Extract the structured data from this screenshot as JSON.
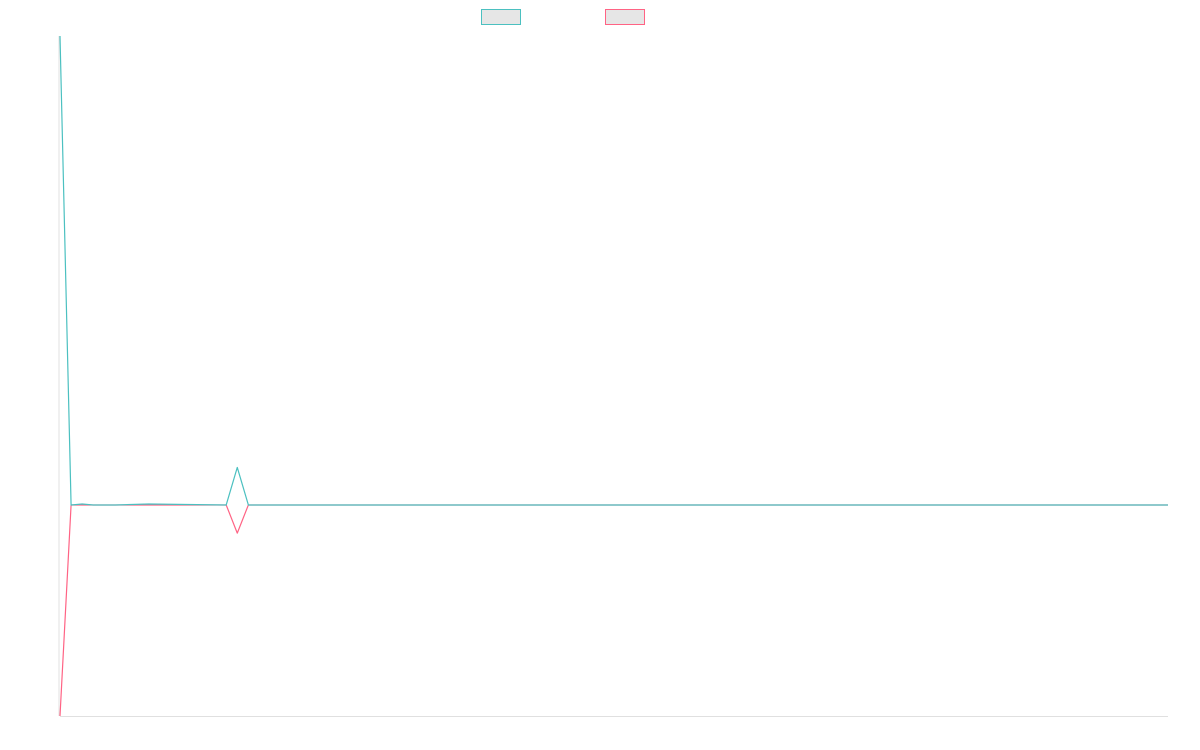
{
  "chart_data": {
    "type": "line",
    "title": "",
    "xlabel": "",
    "ylabel": "",
    "legend_position": "top-center",
    "grid": false,
    "ylim": [
      -0.45,
      1.0
    ],
    "xlim": [
      0,
      100
    ],
    "x": [
      0,
      1,
      2,
      3,
      5,
      8,
      15,
      16,
      17,
      100
    ],
    "series": [
      {
        "color": "#4bc0c0",
        "fill": "#e6e6e6",
        "values": [
          1.0,
          0.0,
          0.002,
          0.0,
          0.0,
          0.002,
          0.0,
          0.08,
          0.0,
          0.0
        ]
      },
      {
        "color": "#ff6384",
        "fill": "#e6e6e6",
        "values": [
          -0.45,
          0.0,
          0.0,
          0.0,
          0.0,
          0.0,
          0.0,
          -0.06,
          0.0,
          0.0
        ]
      }
    ]
  }
}
